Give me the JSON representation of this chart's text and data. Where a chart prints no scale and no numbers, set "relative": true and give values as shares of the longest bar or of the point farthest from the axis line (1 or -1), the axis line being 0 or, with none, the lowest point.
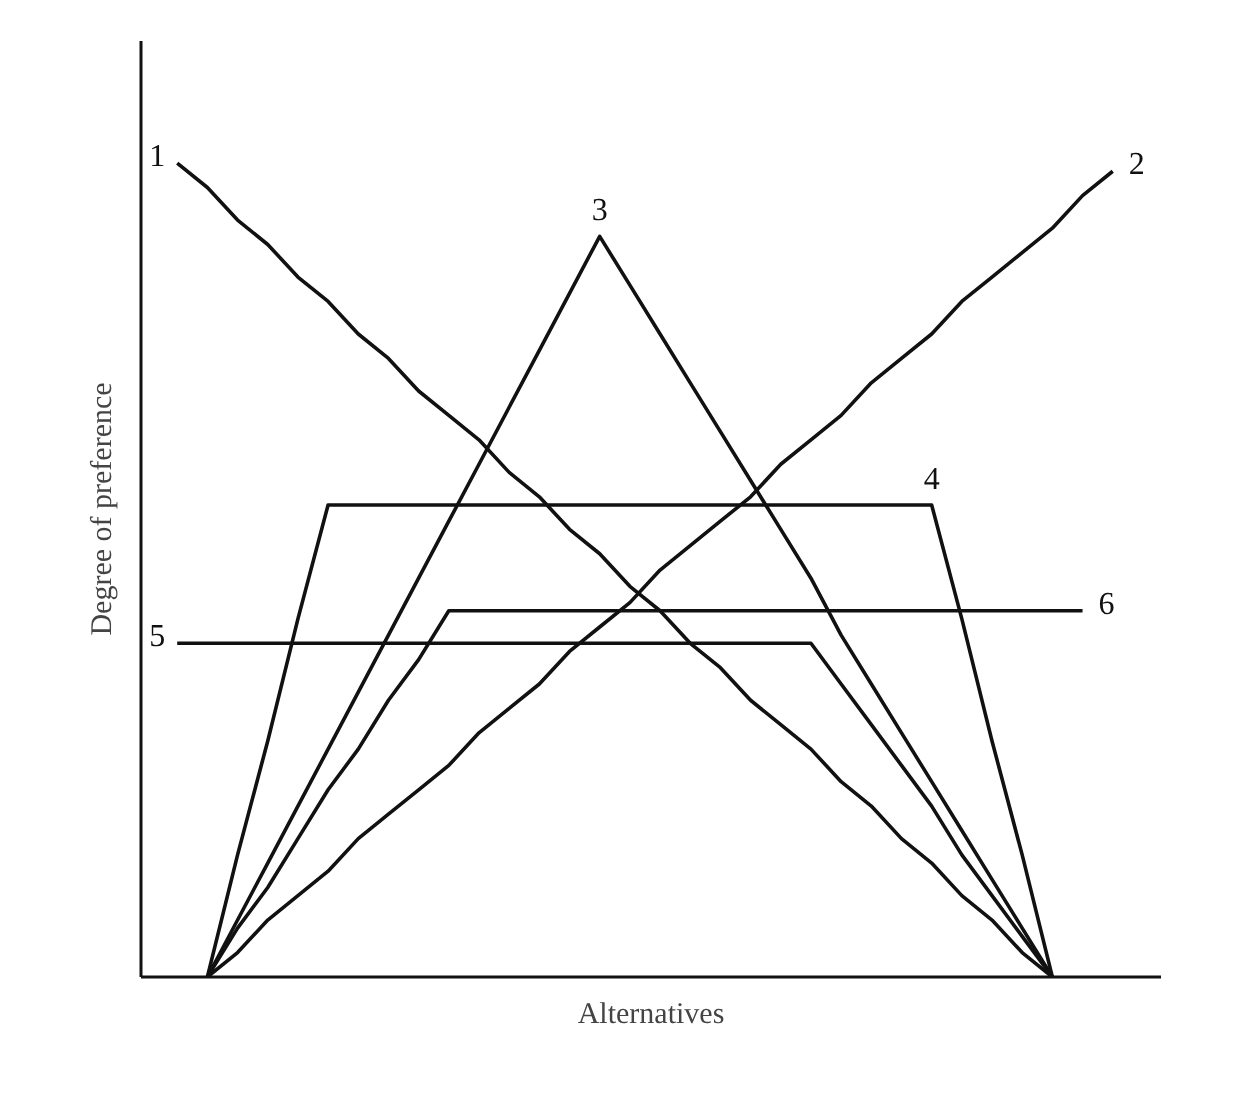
{
  "chart_data": {
    "type": "line",
    "relative": true,
    "xlabel": "Alternatives",
    "ylabel": "Degree of preference",
    "grid": false,
    "legend": false,
    "marker": "none",
    "line_style": "solid",
    "categories": [
      null,
      null,
      null,
      null,
      null,
      null,
      null,
      null,
      null,
      null,
      null,
      null,
      null,
      null,
      null,
      null,
      null,
      null,
      null,
      null,
      null,
      null,
      null,
      null,
      null,
      null,
      null,
      null,
      null,
      null,
      null,
      null
    ],
    "series": [
      {
        "name": "1",
        "color": "#111111",
        "values": [
          1.0,
          0.97,
          0.93,
          0.9,
          0.86,
          0.83,
          0.79,
          0.76,
          0.72,
          0.69,
          0.66,
          0.62,
          0.59,
          0.55,
          0.52,
          0.48,
          0.45,
          0.41,
          0.38,
          0.34,
          0.31,
          0.28,
          0.24,
          0.21,
          0.17,
          0.14,
          0.1,
          0.07,
          0.03,
          0.0,
          null,
          null
        ]
      },
      {
        "name": "2",
        "color": "#111111",
        "values": [
          null,
          0.0,
          0.03,
          0.07,
          0.1,
          0.13,
          0.17,
          0.2,
          0.23,
          0.26,
          0.3,
          0.33,
          0.36,
          0.4,
          0.43,
          0.46,
          0.5,
          0.53,
          0.56,
          0.59,
          0.63,
          0.66,
          0.69,
          0.73,
          0.76,
          0.79,
          0.83,
          0.86,
          0.89,
          0.92,
          0.96,
          0.99
        ]
      },
      {
        "name": "3",
        "color": "#111111",
        "values": [
          null,
          0.0,
          0.07,
          0.14,
          0.21,
          0.28,
          0.35,
          0.42,
          0.49,
          0.56,
          0.63,
          0.7,
          0.77,
          0.84,
          0.91,
          0.85,
          0.79,
          0.73,
          0.67,
          0.61,
          0.55,
          0.49,
          0.42,
          0.36,
          0.3,
          0.24,
          0.18,
          0.12,
          0.06,
          0.0,
          null,
          null
        ]
      },
      {
        "name": "4",
        "color": "#111111",
        "values": [
          null,
          0.0,
          0.15,
          0.29,
          0.44,
          0.58,
          0.58,
          0.58,
          0.58,
          0.58,
          0.58,
          0.58,
          0.58,
          0.58,
          0.58,
          0.58,
          0.58,
          0.58,
          0.58,
          0.58,
          0.58,
          0.58,
          0.58,
          0.58,
          0.58,
          0.58,
          0.44,
          0.29,
          0.15,
          0.0,
          null,
          null
        ]
      },
      {
        "name": "5",
        "color": "#111111",
        "values": [
          0.41,
          0.41,
          0.41,
          0.41,
          0.41,
          0.41,
          0.41,
          0.41,
          0.41,
          0.41,
          0.41,
          0.41,
          0.41,
          0.41,
          0.41,
          0.41,
          0.41,
          0.41,
          0.41,
          0.41,
          0.41,
          0.41,
          0.36,
          0.31,
          0.26,
          0.21,
          0.15,
          0.1,
          0.05,
          0.0,
          null,
          null
        ]
      },
      {
        "name": "6",
        "color": "#111111",
        "values": [
          null,
          0.0,
          0.06,
          0.11,
          0.17,
          0.23,
          0.28,
          0.34,
          0.39,
          0.45,
          0.45,
          0.45,
          0.45,
          0.45,
          0.45,
          0.45,
          0.45,
          0.45,
          0.45,
          0.45,
          0.45,
          0.45,
          0.45,
          0.45,
          0.45,
          0.45,
          0.45,
          0.45,
          0.45,
          0.45,
          0.45,
          null
        ]
      }
    ]
  }
}
